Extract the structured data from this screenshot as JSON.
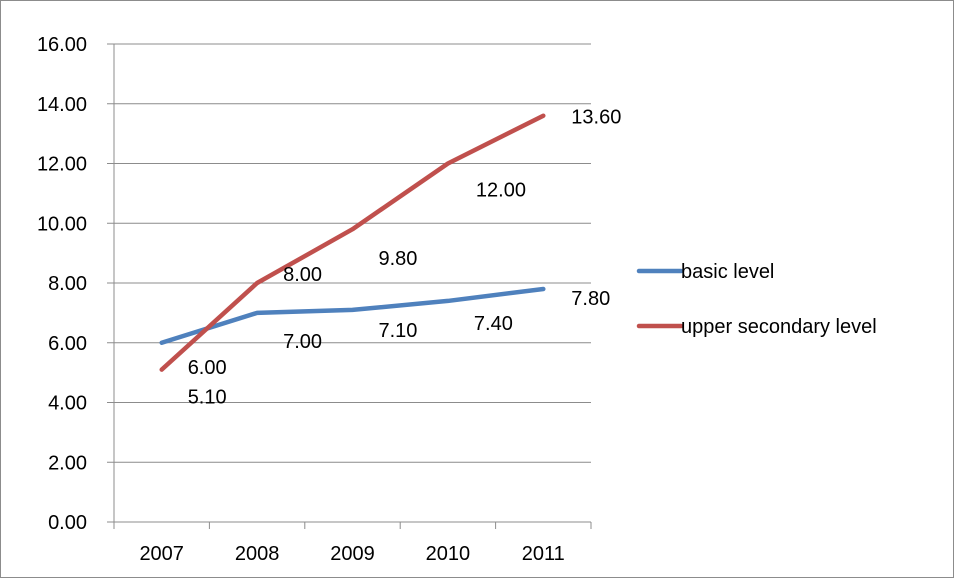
{
  "chart_data": {
    "type": "line",
    "title": "",
    "xlabel": "",
    "ylabel": "",
    "categories": [
      "2007",
      "2008",
      "2009",
      "2010",
      "2011"
    ],
    "ylim": [
      0,
      16
    ],
    "y_ticks": [
      "0.00",
      "2.00",
      "4.00",
      "6.00",
      "8.00",
      "10.00",
      "12.00",
      "14.00",
      "16.00"
    ],
    "grid": true,
    "legend_position": "right",
    "series": [
      {
        "name": "basic level",
        "color": "#4f81bd",
        "values": [
          6.0,
          7.0,
          7.1,
          7.4,
          7.8
        ],
        "labels": [
          "6.00",
          "7.00",
          "7.10",
          "7.40",
          "7.80"
        ]
      },
      {
        "name": "upper secondary level",
        "color": "#c0504d",
        "values": [
          5.1,
          8.0,
          9.8,
          12.0,
          13.6
        ],
        "labels": [
          "5.10",
          "8.00",
          "9.80",
          "12.00",
          "13.60"
        ]
      }
    ]
  }
}
